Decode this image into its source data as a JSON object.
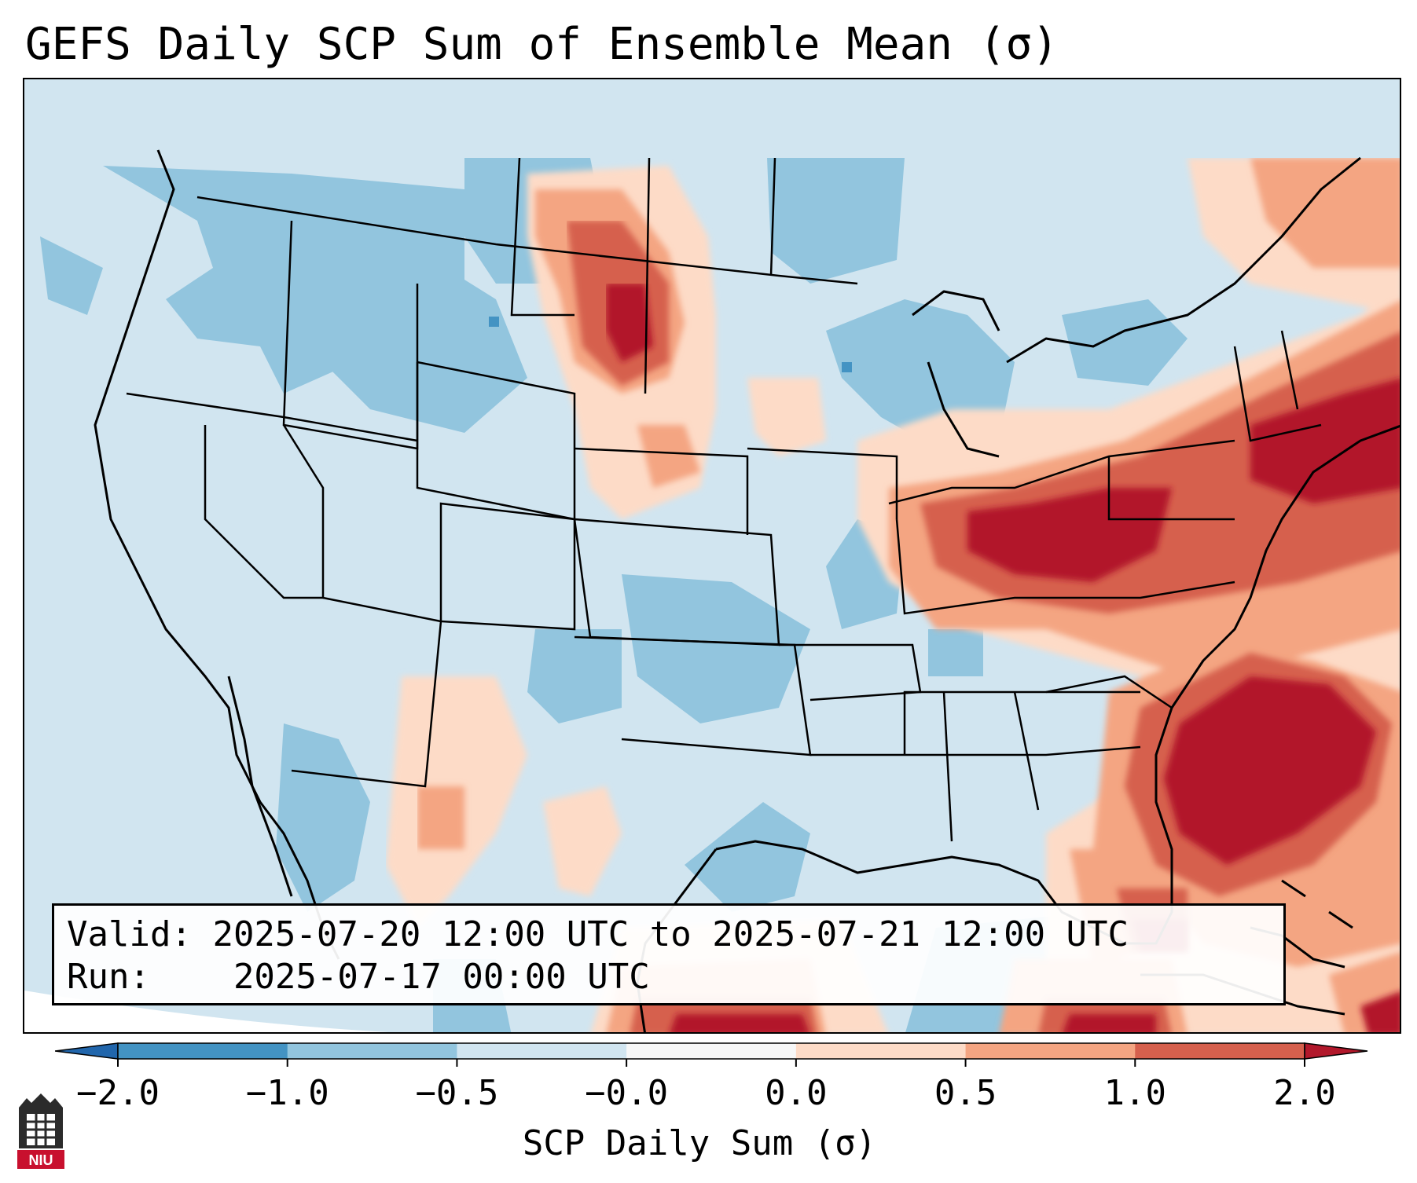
{
  "title": "GEFS Daily SCP Sum of Ensemble Mean (σ)",
  "info": {
    "valid_label": "Valid:",
    "valid_value": "2025-07-20 12:00 UTC to 2025-07-21 12:00 UTC",
    "run_label": "Run:",
    "run_value": "2025-07-17 00:00 UTC"
  },
  "colorbar": {
    "label": "SCP Daily Sum (σ)",
    "ticks": [
      "−2.0",
      "−1.0",
      "−0.5",
      "−0.0",
      "0.0",
      "0.5",
      "1.0",
      "2.0"
    ],
    "colors": [
      "#4393c3",
      "#92c5de",
      "#d1e5f0",
      "#f7f7f7",
      "#fddbc7",
      "#f4a582",
      "#d6604d"
    ],
    "under_color": "#2166ac",
    "over_color": "#b2182b"
  },
  "logo": {
    "text": "NIU",
    "color": "#c8102e"
  }
}
